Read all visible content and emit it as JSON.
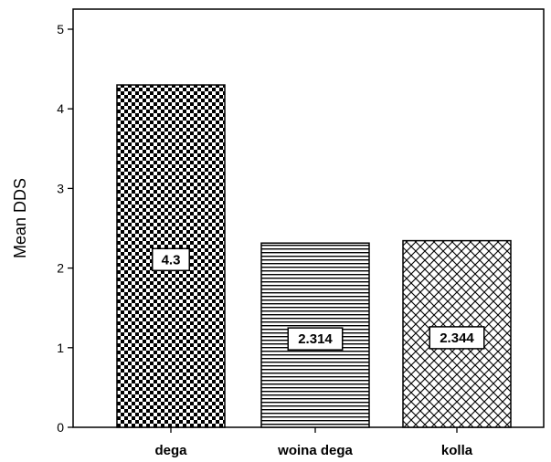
{
  "chart_data": {
    "type": "bar",
    "title": "",
    "xlabel": "",
    "ylabel": "Mean DDS",
    "categories": [
      "dega",
      "woina dega",
      "kolla"
    ],
    "values": [
      4.3,
      2.314,
      2.344
    ],
    "data_labels": [
      "4.3",
      "2.314",
      "2.344"
    ],
    "y_ticks": [
      0,
      1,
      2,
      3,
      4,
      5
    ],
    "ylim": [
      0,
      5.4
    ],
    "grid": false,
    "bar_patterns": [
      "checkerboard",
      "horizontal-lines",
      "crosshatch"
    ],
    "colors": {
      "ink": "#000000",
      "background": "#ffffff"
    }
  }
}
